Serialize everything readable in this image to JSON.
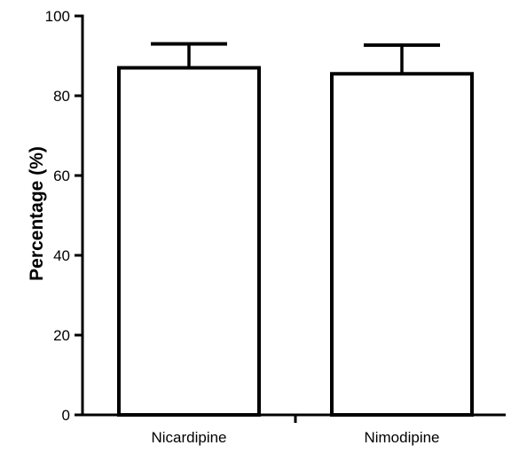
{
  "chart_data": {
    "type": "bar",
    "categories": [
      "Nicardipine",
      "Nimodipine"
    ],
    "series": [
      {
        "values": [
          87,
          85.5
        ],
        "error_upper": [
          93,
          92.7
        ]
      }
    ],
    "title": "",
    "xlabel": "",
    "ylabel": "Percentage (%)",
    "ylim": [
      0,
      100
    ],
    "yticks": [
      0,
      20,
      40,
      60,
      80,
      100
    ],
    "grid": false,
    "legend": "none",
    "bar_fill": "#ffffff",
    "bar_stroke": "#000000"
  }
}
